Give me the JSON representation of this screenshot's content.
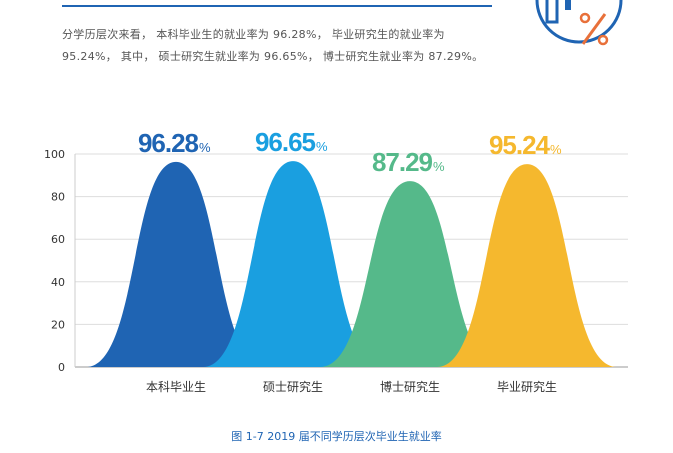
{
  "intro": {
    "line1": "分学历层次来看， 本科毕业生的就业率为 96.28%， 毕业研究生的就业率为",
    "line2": "95.24%， 其中， 硕士研究生就业率为 96.65%， 博士研究生就业率为 87.29%。"
  },
  "badge": {
    "icon_name": "percent-icon",
    "color": "#1f64b3",
    "accent": "#e8703a"
  },
  "chart_data": {
    "type": "area",
    "categories": [
      "本科毕业生",
      "硕士研究生",
      "博士研究生",
      "毕业研究生"
    ],
    "values": [
      96.28,
      96.65,
      87.29,
      95.24
    ],
    "value_labels": [
      "96.28",
      "96.65",
      "87.29",
      "95.24"
    ],
    "unit": "%",
    "colors": [
      "#1f64b3",
      "#1a9fe0",
      "#55b98a",
      "#f5b82e"
    ],
    "y_ticks": [
      "100",
      "80",
      "60",
      "40",
      "20",
      "0"
    ],
    "ylim": [
      0,
      100
    ],
    "grid": true,
    "title": "",
    "xlabel": "",
    "ylabel": ""
  },
  "caption": "图 1-7 2019 届不同学历层次毕业生就业率"
}
